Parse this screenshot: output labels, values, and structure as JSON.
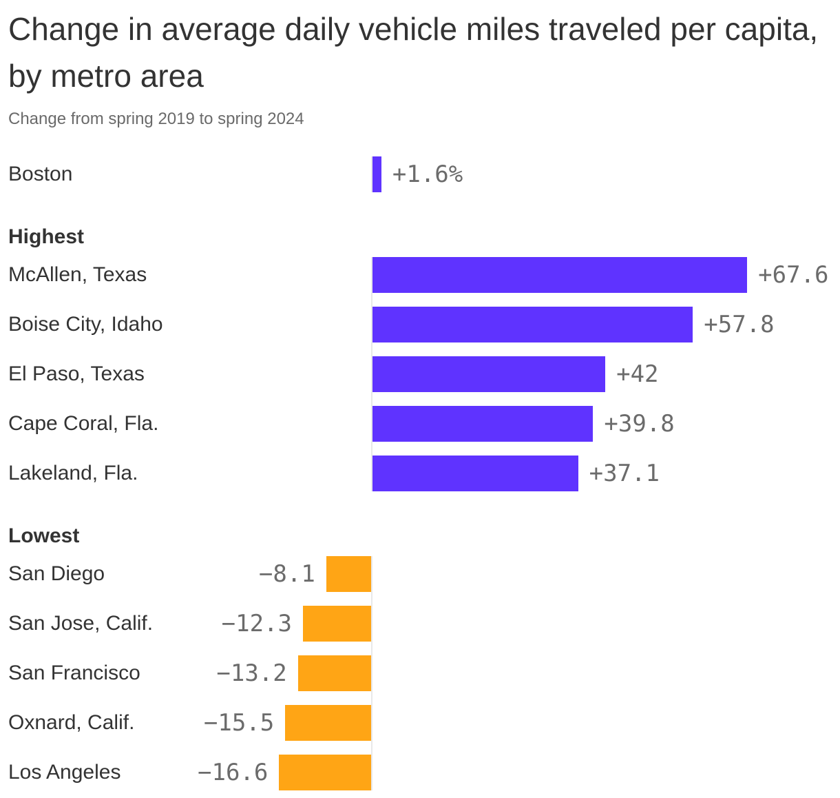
{
  "header": {
    "title": "Change in average daily vehicle miles traveled per capita, by metro area",
    "subtitle": "Change from spring 2019 to spring 2024"
  },
  "chart_data": {
    "type": "bar",
    "orientation": "horizontal",
    "value_unit": "percent change",
    "positive_color": "#5f33ff",
    "negative_color": "#ffa515",
    "axis_line_color": "#e8e8e8",
    "label_color": "#333333",
    "value_color": "#6b6b6b",
    "sections": [
      {
        "header": "",
        "rows": [
          {
            "label": "Boston",
            "value": 1.6,
            "display": "+1.6%"
          }
        ]
      },
      {
        "header": "Highest",
        "rows": [
          {
            "label": "McAllen, Texas",
            "value": 67.6,
            "display": "+67.6"
          },
          {
            "label": "Boise City, Idaho",
            "value": 57.8,
            "display": "+57.8"
          },
          {
            "label": "El Paso, Texas",
            "value": 42,
            "display": "+42"
          },
          {
            "label": "Cape Coral, Fla.",
            "value": 39.8,
            "display": "+39.8"
          },
          {
            "label": "Lakeland, Fla.",
            "value": 37.1,
            "display": "+37.1"
          }
        ]
      },
      {
        "header": "Lowest",
        "rows": [
          {
            "label": "San Diego",
            "value": -8.1,
            "display": "−8.1"
          },
          {
            "label": "San Jose, Calif.",
            "value": -12.3,
            "display": "−12.3"
          },
          {
            "label": "San Francisco",
            "value": -13.2,
            "display": "−13.2"
          },
          {
            "label": "Oxnard, Calif.",
            "value": -15.5,
            "display": "−15.5"
          },
          {
            "label": "Los Angeles",
            "value": -16.6,
            "display": "−16.6"
          }
        ]
      }
    ]
  }
}
